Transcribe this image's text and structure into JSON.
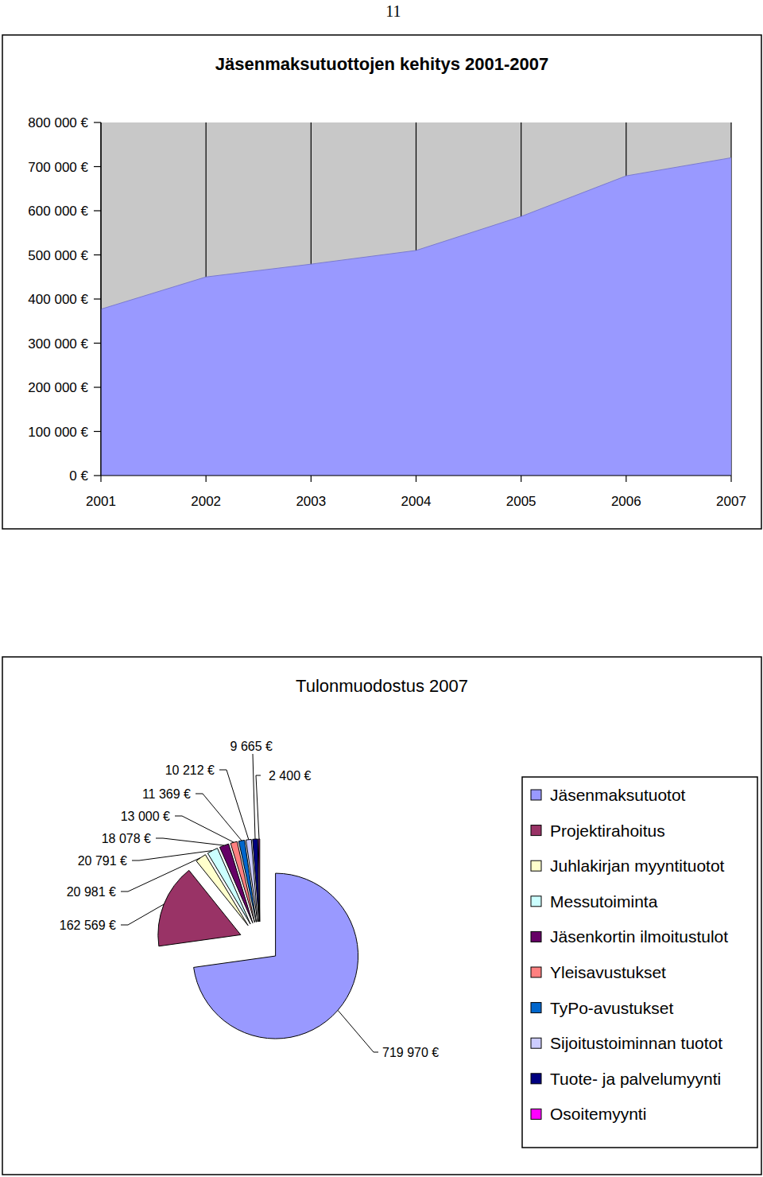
{
  "page": {
    "number": "11"
  },
  "chart_data": [
    {
      "type": "area",
      "title": "Jäsenmaksutuottojen kehitys 2001-2007",
      "categories": [
        "2001",
        "2002",
        "2003",
        "2004",
        "2005",
        "2006",
        "2007"
      ],
      "values": [
        377000,
        450000,
        479000,
        510000,
        587000,
        679000,
        720000
      ],
      "color": "#9999ff",
      "ylim": [
        0,
        800000
      ],
      "yticks": [
        {
          "value": 0,
          "label": "0 €"
        },
        {
          "value": 100000,
          "label": "100 000 €"
        },
        {
          "value": 200000,
          "label": "200 000 €"
        },
        {
          "value": 300000,
          "label": "300 000 €"
        },
        {
          "value": 400000,
          "label": "400 000 €"
        },
        {
          "value": 500000,
          "label": "500 000 €"
        },
        {
          "value": 600000,
          "label": "600 000 €"
        },
        {
          "value": 700000,
          "label": "700 000 €"
        },
        {
          "value": 800000,
          "label": "800 000 €"
        }
      ],
      "grid": true
    },
    {
      "type": "pie",
      "title": "Tulonmuodostus 2007",
      "categories": [
        "Jäsenmaksutuotot",
        "Projektirahoitus",
        "Juhlakirjan myyntituotot",
        "Messutoiminta",
        "Jäsenkortin ilmoitustulot",
        "Yleisavustukset",
        "TyPo-avustukset",
        "Sijoitustoiminnan tuotot",
        "Tuote- ja palvelumyynti",
        "Osoitemyynti"
      ],
      "values": [
        719970,
        162569,
        20981,
        20791,
        18078,
        13000,
        11369,
        10212,
        9665,
        2400
      ],
      "value_labels": [
        "719 970 €",
        "162 569 €",
        "20 981 €",
        "20 791 €",
        "18 078 €",
        "13 000 €",
        "11 369 €",
        "10 212 €",
        "9 665 €",
        "2 400 €"
      ],
      "colors": [
        "#9999ff",
        "#993366",
        "#ffffcc",
        "#ccffff",
        "#660066",
        "#ff8080",
        "#0066cc",
        "#ccccff",
        "#000080",
        "#ff00ff"
      ],
      "data_labels": true,
      "legend": "right"
    }
  ]
}
